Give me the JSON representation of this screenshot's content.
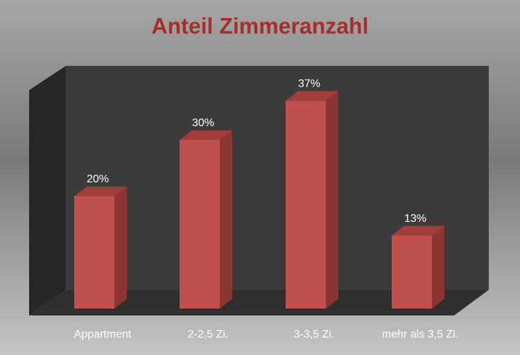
{
  "chart_data": {
    "type": "bar",
    "title": "Anteil Zimmeranzahl",
    "categories": [
      "Appartment",
      "2-2,5 Zi.",
      "3-3,5 Zi.",
      "mehr als 3,5 Zi."
    ],
    "values": [
      20,
      30,
      37,
      13
    ],
    "value_labels": [
      "20%",
      "30%",
      "37%",
      "13%"
    ],
    "color": "#c0504d"
  }
}
